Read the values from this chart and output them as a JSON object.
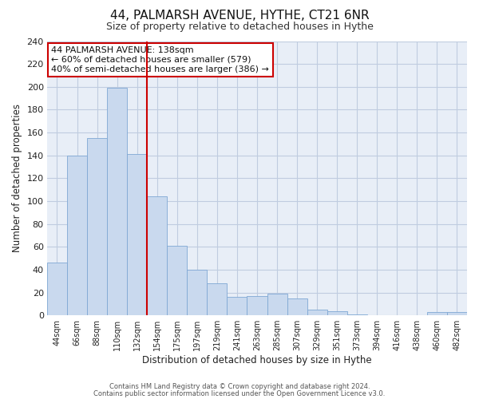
{
  "title1": "44, PALMARSH AVENUE, HYTHE, CT21 6NR",
  "title2": "Size of property relative to detached houses in Hythe",
  "xlabel": "Distribution of detached houses by size in Hythe",
  "ylabel": "Number of detached properties",
  "bar_labels": [
    "44sqm",
    "66sqm",
    "88sqm",
    "110sqm",
    "132sqm",
    "154sqm",
    "175sqm",
    "197sqm",
    "219sqm",
    "241sqm",
    "263sqm",
    "285sqm",
    "307sqm",
    "329sqm",
    "351sqm",
    "373sqm",
    "394sqm",
    "416sqm",
    "438sqm",
    "460sqm",
    "482sqm"
  ],
  "bar_values": [
    46,
    140,
    155,
    199,
    141,
    104,
    61,
    40,
    28,
    16,
    17,
    19,
    15,
    5,
    4,
    1,
    0,
    0,
    0,
    3,
    3
  ],
  "bar_color": "#c9d9ee",
  "bar_edge_color": "#7fa8d4",
  "vline_color": "#cc0000",
  "annotation_title": "44 PALMARSH AVENUE: 138sqm",
  "annotation_line1": "← 60% of detached houses are smaller (579)",
  "annotation_line2": "40% of semi-detached houses are larger (386) →",
  "annotation_box_color": "#ffffff",
  "annotation_box_edge": "#cc0000",
  "ylim": [
    0,
    240
  ],
  "yticks": [
    0,
    20,
    40,
    60,
    80,
    100,
    120,
    140,
    160,
    180,
    200,
    220,
    240
  ],
  "footer1": "Contains HM Land Registry data © Crown copyright and database right 2024.",
  "footer2": "Contains public sector information licensed under the Open Government Licence v3.0.",
  "bg_color": "#ffffff",
  "plot_bg_color": "#e8eef7",
  "grid_color": "#c0cce0",
  "title1_fontsize": 11,
  "title2_fontsize": 9
}
